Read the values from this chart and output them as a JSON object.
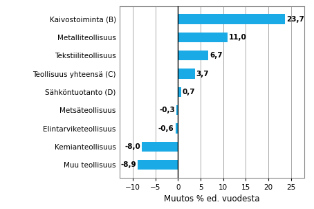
{
  "categories": [
    "Muu teollisuus",
    "Kemianteollisuus",
    "Elintarviketeollisuus",
    "Metsäteollisuus",
    "Sähköntuotanto (D)",
    "Teollisuus yhteensä (C)",
    "Tekstiiliteollisuus",
    "Metalliteollisuus",
    "Kaivostoiminta (B)"
  ],
  "values": [
    -8.9,
    -8.0,
    -0.6,
    -0.3,
    0.7,
    3.7,
    6.7,
    11.0,
    23.7
  ],
  "bar_color": "#1aabe6",
  "xlabel": "Muutos % ed. vuodesta",
  "xlim": [
    -13,
    28
  ],
  "xticks": [
    -10,
    -5,
    0,
    5,
    10,
    15,
    20,
    25
  ],
  "bar_height": 0.55,
  "background_color": "#ffffff",
  "grid_color": "#aaaaaa",
  "label_fontsize": 7.5,
  "xlabel_fontsize": 8.5,
  "tick_fontsize": 7.5,
  "value_fontsize": 7.5
}
